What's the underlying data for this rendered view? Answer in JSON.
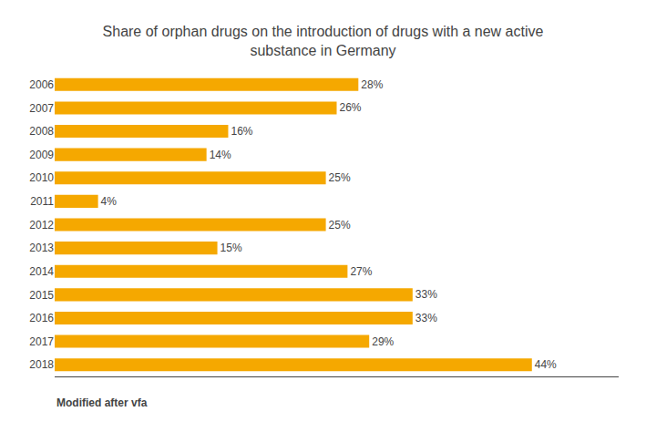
{
  "chart_data": {
    "type": "bar",
    "orientation": "horizontal",
    "title": "Share of orphan drugs on the introduction of drugs with a new active\nsubstance in Germany",
    "categories": [
      "2006",
      "2007",
      "2008",
      "2009",
      "2010",
      "2011",
      "2012",
      "2013",
      "2014",
      "2015",
      "2016",
      "2017",
      "2018"
    ],
    "values": [
      28,
      26,
      16,
      14,
      25,
      4,
      25,
      15,
      27,
      33,
      33,
      29,
      44
    ],
    "value_labels": [
      "28%",
      "26%",
      "16%",
      "14%",
      "25%",
      "4%",
      "25%",
      "15%",
      "27%",
      "33%",
      "33%",
      "29%",
      "44%"
    ],
    "data_labels": true,
    "color": "#F5A800",
    "xlim": [
      0,
      52
    ],
    "tick_labels": "y",
    "grid": false,
    "annotations": [
      "Modified after vfa"
    ]
  }
}
